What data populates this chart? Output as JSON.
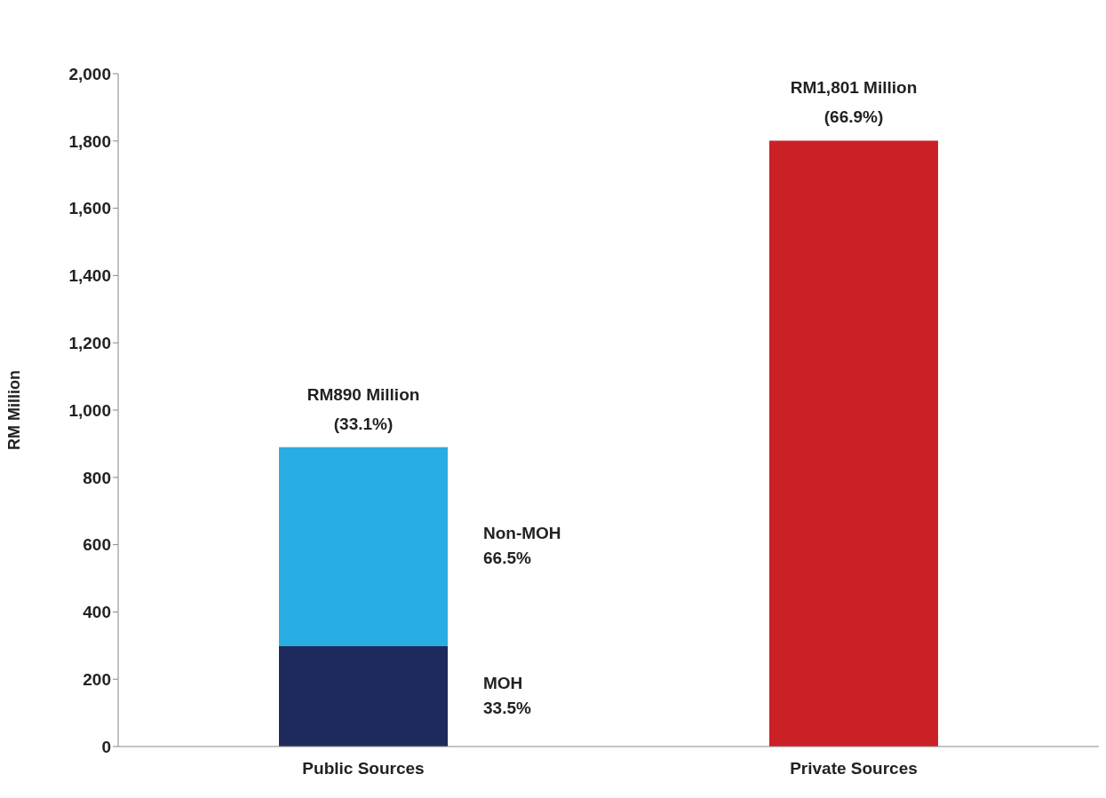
{
  "chart_data": {
    "type": "bar",
    "stacked": true,
    "ylabel": "RM Million",
    "categories": [
      "Public Sources",
      "Private Sources"
    ],
    "series": [
      {
        "name": "MOH",
        "color": "#1f2a5c",
        "values": [
          298,
          null
        ]
      },
      {
        "name": "Non-MOH",
        "color": "#29aee3",
        "values": [
          592,
          null
        ]
      },
      {
        "color": "#cc2027",
        "values": [
          null,
          1801
        ]
      }
    ],
    "annotations": [
      "33.5%",
      "66.5%"
    ],
    "totals": [
      "RM890 Million\n(33.1%)",
      "RM1,801 Million\n(66.9%)"
    ],
    "ylim": [
      0,
      2000
    ],
    "yticks": [
      0,
      200,
      400,
      600,
      800,
      {
        "value": 1000,
        "label": "1,000"
      },
      {
        "value": 1200,
        "label": "1,200"
      },
      {
        "value": 1400,
        "label": "1,400"
      },
      {
        "value": 1600,
        "label": "1,600"
      },
      {
        "value": 1800,
        "label": "1,800"
      },
      {
        "value": 2000,
        "label": "2,000"
      }
    ]
  }
}
